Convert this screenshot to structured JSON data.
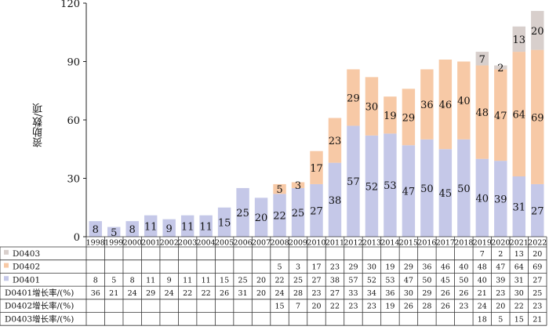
{
  "chart_data": {
    "type": "bar",
    "stacked": true,
    "ylabel": "资助数/项",
    "ylim": [
      0,
      120
    ],
    "yticks": [
      0,
      30,
      60,
      90,
      120
    ],
    "categories": [
      "1998",
      "1999",
      "2000",
      "2001",
      "2002",
      "2003",
      "2004",
      "2005",
      "2006",
      "2007",
      "2008",
      "2009",
      "2010",
      "2011",
      "2012",
      "2013",
      "2014",
      "2015",
      "2016",
      "2017",
      "2018",
      "2019",
      "2020",
      "2021",
      "2022"
    ],
    "series": [
      {
        "name": "D0401",
        "color": "#c5c8e8",
        "values": [
          8,
          5,
          8,
          11,
          9,
          11,
          11,
          15,
          25,
          20,
          22,
          25,
          27,
          38,
          57,
          52,
          53,
          47,
          50,
          45,
          50,
          40,
          39,
          31,
          27
        ]
      },
      {
        "name": "D0402",
        "color": "#f7c9a6",
        "values": [
          null,
          null,
          null,
          null,
          null,
          null,
          null,
          null,
          null,
          null,
          5,
          3,
          17,
          23,
          29,
          30,
          19,
          29,
          36,
          46,
          40,
          48,
          47,
          64,
          69
        ]
      },
      {
        "name": "D0403",
        "color": "#d8cfcc",
        "values": [
          null,
          null,
          null,
          null,
          null,
          null,
          null,
          null,
          null,
          null,
          null,
          null,
          null,
          null,
          null,
          null,
          null,
          null,
          null,
          null,
          null,
          7,
          2,
          13,
          20
        ]
      }
    ],
    "table": {
      "rows": [
        {
          "label": "D0403",
          "swatch": "#d8cfcc",
          "values": [
            "",
            "",
            "",
            "",
            "",
            "",
            "",
            "",
            "",
            "",
            "",
            "",
            "",
            "",
            "",
            "",
            "",
            "",
            "",
            "",
            "",
            "7",
            "2",
            "13",
            "20"
          ]
        },
        {
          "label": "D0402",
          "swatch": "#f7c9a6",
          "values": [
            "",
            "",
            "",
            "",
            "",
            "",
            "",
            "",
            "",
            "",
            "5",
            "3",
            "17",
            "23",
            "29",
            "30",
            "19",
            "29",
            "36",
            "46",
            "40",
            "48",
            "47",
            "64",
            "69"
          ]
        },
        {
          "label": "D0401",
          "swatch": "#c5c8e8",
          "values": [
            "8",
            "5",
            "8",
            "11",
            "9",
            "11",
            "11",
            "15",
            "25",
            "20",
            "22",
            "25",
            "27",
            "38",
            "57",
            "52",
            "53",
            "47",
            "50",
            "45",
            "50",
            "40",
            "39",
            "31",
            "27"
          ]
        },
        {
          "label": "D0401增长率/(%)",
          "swatch": "",
          "values": [
            "36",
            "21",
            "24",
            "29",
            "24",
            "22",
            "22",
            "26",
            "31",
            "20",
            "24",
            "28",
            "23",
            "27",
            "33",
            "34",
            "36",
            "30",
            "29",
            "26",
            "26",
            "21",
            "23",
            "30",
            "25"
          ]
        },
        {
          "label": "D0402增长率/(%)",
          "swatch": "",
          "values": [
            "",
            "",
            "",
            "",
            "",
            "",
            "",
            "",
            "",
            "",
            "15",
            "7",
            "20",
            "22",
            "23",
            "23",
            "19",
            "26",
            "28",
            "26",
            "23",
            "24",
            "20",
            "22",
            "23"
          ]
        },
        {
          "label": "D0403增长率/(%)",
          "swatch": "",
          "values": [
            "",
            "",
            "",
            "",
            "",
            "",
            "",
            "",
            "",
            "",
            "",
            "",
            "",
            "",
            "",
            "",
            "",
            "",
            "",
            "",
            "",
            "18",
            "5",
            "15",
            "21"
          ]
        }
      ]
    }
  }
}
